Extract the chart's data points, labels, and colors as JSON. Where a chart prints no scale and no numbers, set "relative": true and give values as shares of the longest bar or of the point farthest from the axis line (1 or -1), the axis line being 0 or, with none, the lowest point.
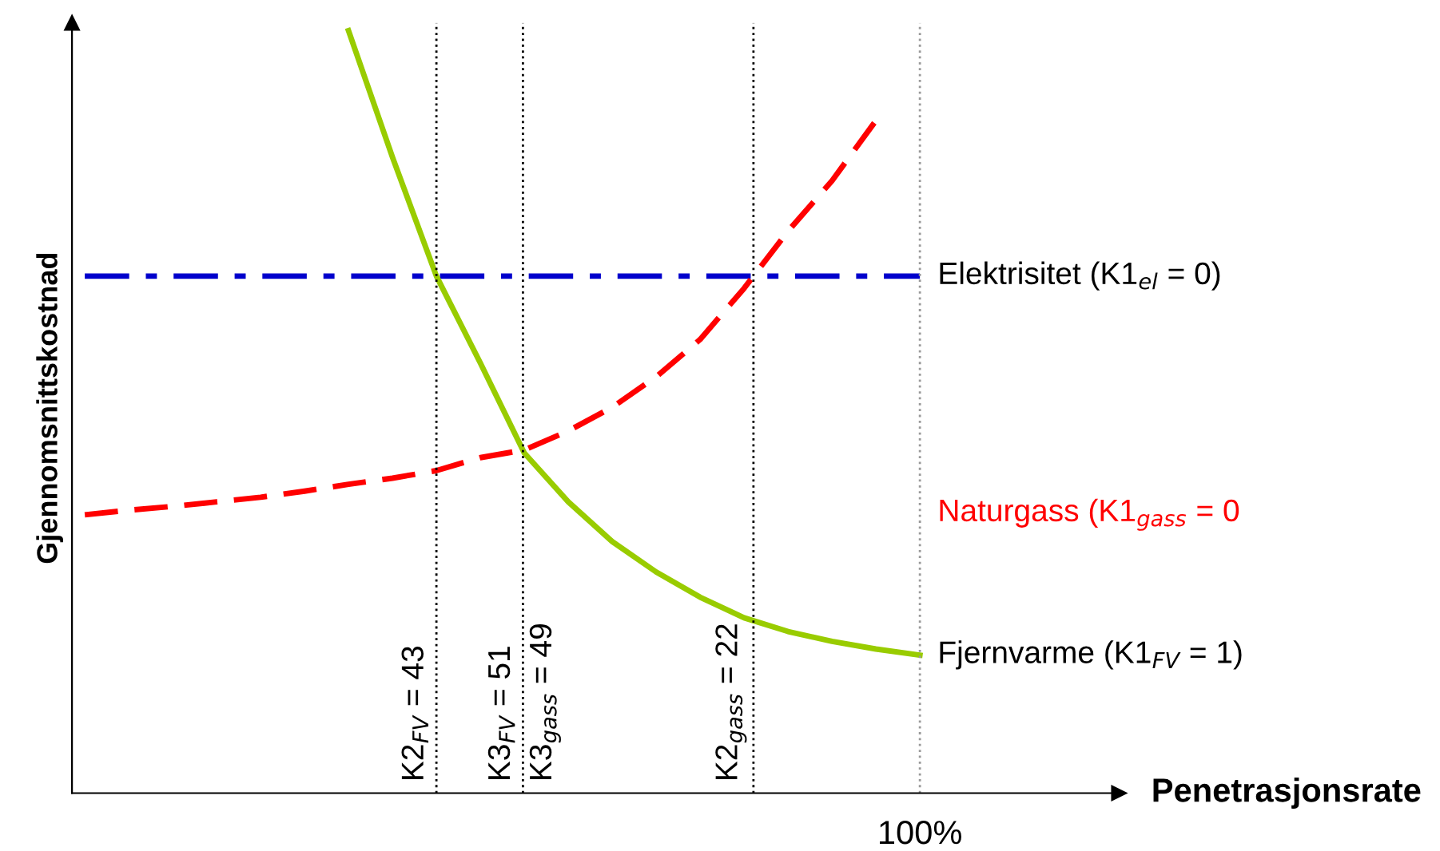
{
  "chart_data": {
    "type": "line",
    "relative": true,
    "ylabel": "Gjennomsnittskostnad",
    "legend": false,
    "categories": [
      null,
      null,
      null,
      null,
      null,
      null,
      null,
      null,
      null,
      null,
      null,
      null,
      null,
      null,
      null,
      null,
      null,
      null,
      null,
      null
    ],
    "annotations": [
      "K2$_{FV}$ = 43",
      "K3$_{FV}$ = 51",
      "K3$_{gass}$ = 49",
      "K2$_{gass}$ = 22",
      "100%",
      "Penetrasjonsrate"
    ],
    "series": [
      {
        "name": "Elektrisitet (K1$_{el}$ = 0)",
        "color": "#0000cc",
        "line_style": "dashdot",
        "values": [
          0.678,
          0.678,
          0.678,
          0.678,
          0.678,
          0.678,
          0.678,
          0.678,
          0.678,
          0.678,
          0.678,
          0.678,
          0.678,
          0.678,
          0.678,
          0.678,
          0.678,
          0.678,
          0.678,
          0.678
        ]
      },
      {
        "name": "Naturgass (K1$_{gass}$ = 0",
        "color": "#ff0000",
        "line_style": "dashed",
        "values": [
          0.365,
          0.371,
          0.376,
          0.382,
          0.388,
          0.396,
          0.405,
          0.413,
          0.423,
          0.44,
          0.45,
          0.475,
          0.506,
          0.546,
          0.595,
          0.662,
          0.737,
          0.803,
          0.882,
          null
        ]
      },
      {
        "name": "Fjernvarme (K1$_{FV}$ = 1)",
        "color": "#99cc00",
        "line_style": "solid",
        "values": [
          null,
          null,
          null,
          null,
          null,
          null,
          1.0,
          0.834,
          0.678,
          0.564,
          0.446,
          0.382,
          0.33,
          0.29,
          0.257,
          0.23,
          0.212,
          0.199,
          0.189,
          0.181
        ]
      }
    ]
  }
}
